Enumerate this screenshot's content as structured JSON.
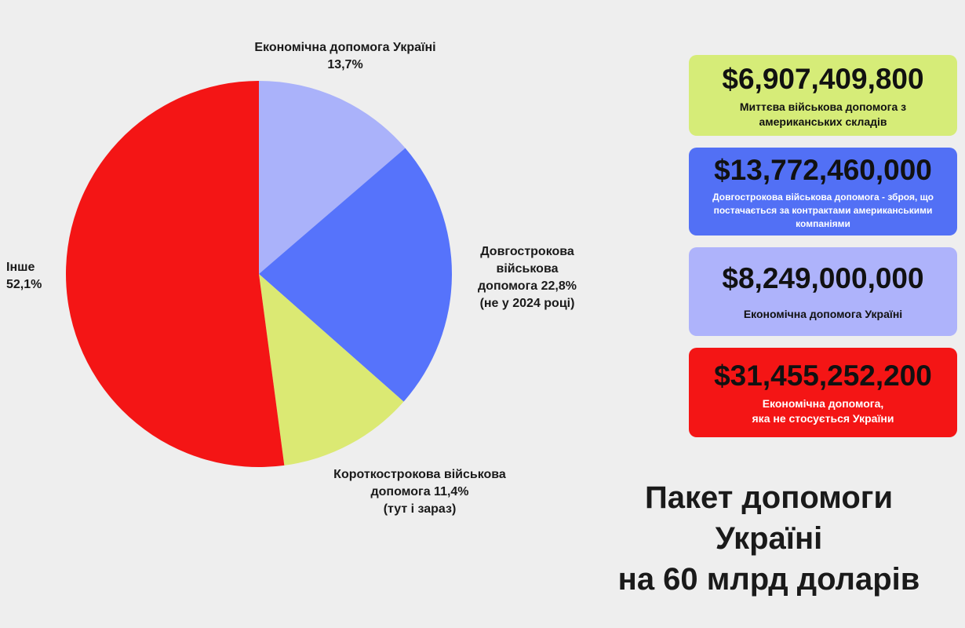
{
  "chart_data": {
    "type": "pie",
    "title": "Пакет допомоги\nУкраїні\nна 60 млрд доларів",
    "categories": [
      "Економічна допомога Україні",
      "Довгострокова військова допомога",
      "Короткострокова військова допомога",
      "Інше"
    ],
    "values": [
      13.7,
      22.8,
      11.4,
      52.1
    ],
    "value_labels": [
      "13,7%",
      "22,8%",
      "11,4%",
      "52,1%"
    ],
    "colors": [
      "#aab2fa",
      "#5673fb",
      "#dbe973",
      "#f41515"
    ],
    "annotations": [
      "(не у 2024 році)",
      "(тут і зараз)"
    ]
  },
  "cards": [
    {
      "amount": "$6,907,409,800",
      "text": "Миттєва військова допомога з\nамериканських складів",
      "color": "#d6ec78",
      "text_color": "#111111"
    },
    {
      "amount": "$13,772,460,000",
      "text": "Довгострокова військова допомога - зброя, що\nпостачається за контрактами американськими\nкомпаніями",
      "color": "#5270f5",
      "text_color": "#ffffff"
    },
    {
      "amount": "$8,249,000,000",
      "text": "Економічна допомога Україні",
      "color": "#aeb3fb",
      "text_color": "#111111"
    },
    {
      "amount": "$31,455,252,200",
      "text": "Економічна допомога,\nяка не стосується України",
      "color": "#f41515",
      "text_color": "#ffffff"
    }
  ]
}
